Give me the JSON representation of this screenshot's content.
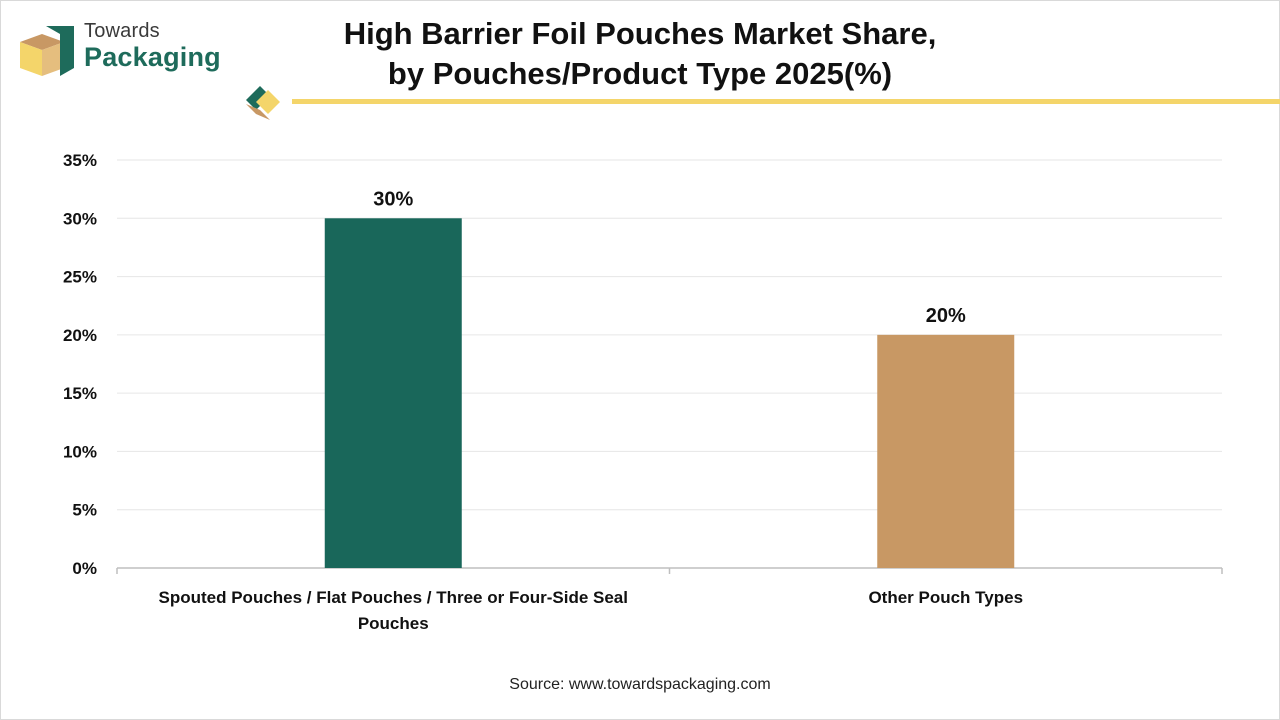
{
  "brand": {
    "line1": "Towards",
    "line2": "Packaging"
  },
  "title": {
    "line1": "High Barrier Foil Pouches Market Share,",
    "line2": "by Pouches/Product Type 2025(%)"
  },
  "source": "Source: www.towardspackaging.com",
  "colors": {
    "accent_yellow": "#f4d56a",
    "series_green": "#19675a",
    "series_tan": "#c89864",
    "brand_green": "#1e6b5b"
  },
  "chart_data": {
    "type": "bar",
    "categories": [
      "Spouted Pouches / Flat Pouches / Three or Four-Side Seal Pouches",
      "Other Pouch Types"
    ],
    "category_label_lines": [
      [
        "Spouted Pouches / Flat Pouches / Three or Four-Side Seal",
        "Pouches"
      ],
      [
        "Other Pouch Types"
      ]
    ],
    "values": [
      30,
      20
    ],
    "data_labels": [
      "30%",
      "20%"
    ],
    "bar_colors": [
      "#19675a",
      "#c89864"
    ],
    "ylim": [
      0,
      35
    ],
    "yticks": [
      0,
      5,
      10,
      15,
      20,
      25,
      30,
      35
    ],
    "ytick_labels": [
      "0%",
      "5%",
      "10%",
      "15%",
      "20%",
      "25%",
      "30%",
      "35%"
    ],
    "grid": true,
    "legend": "none"
  }
}
